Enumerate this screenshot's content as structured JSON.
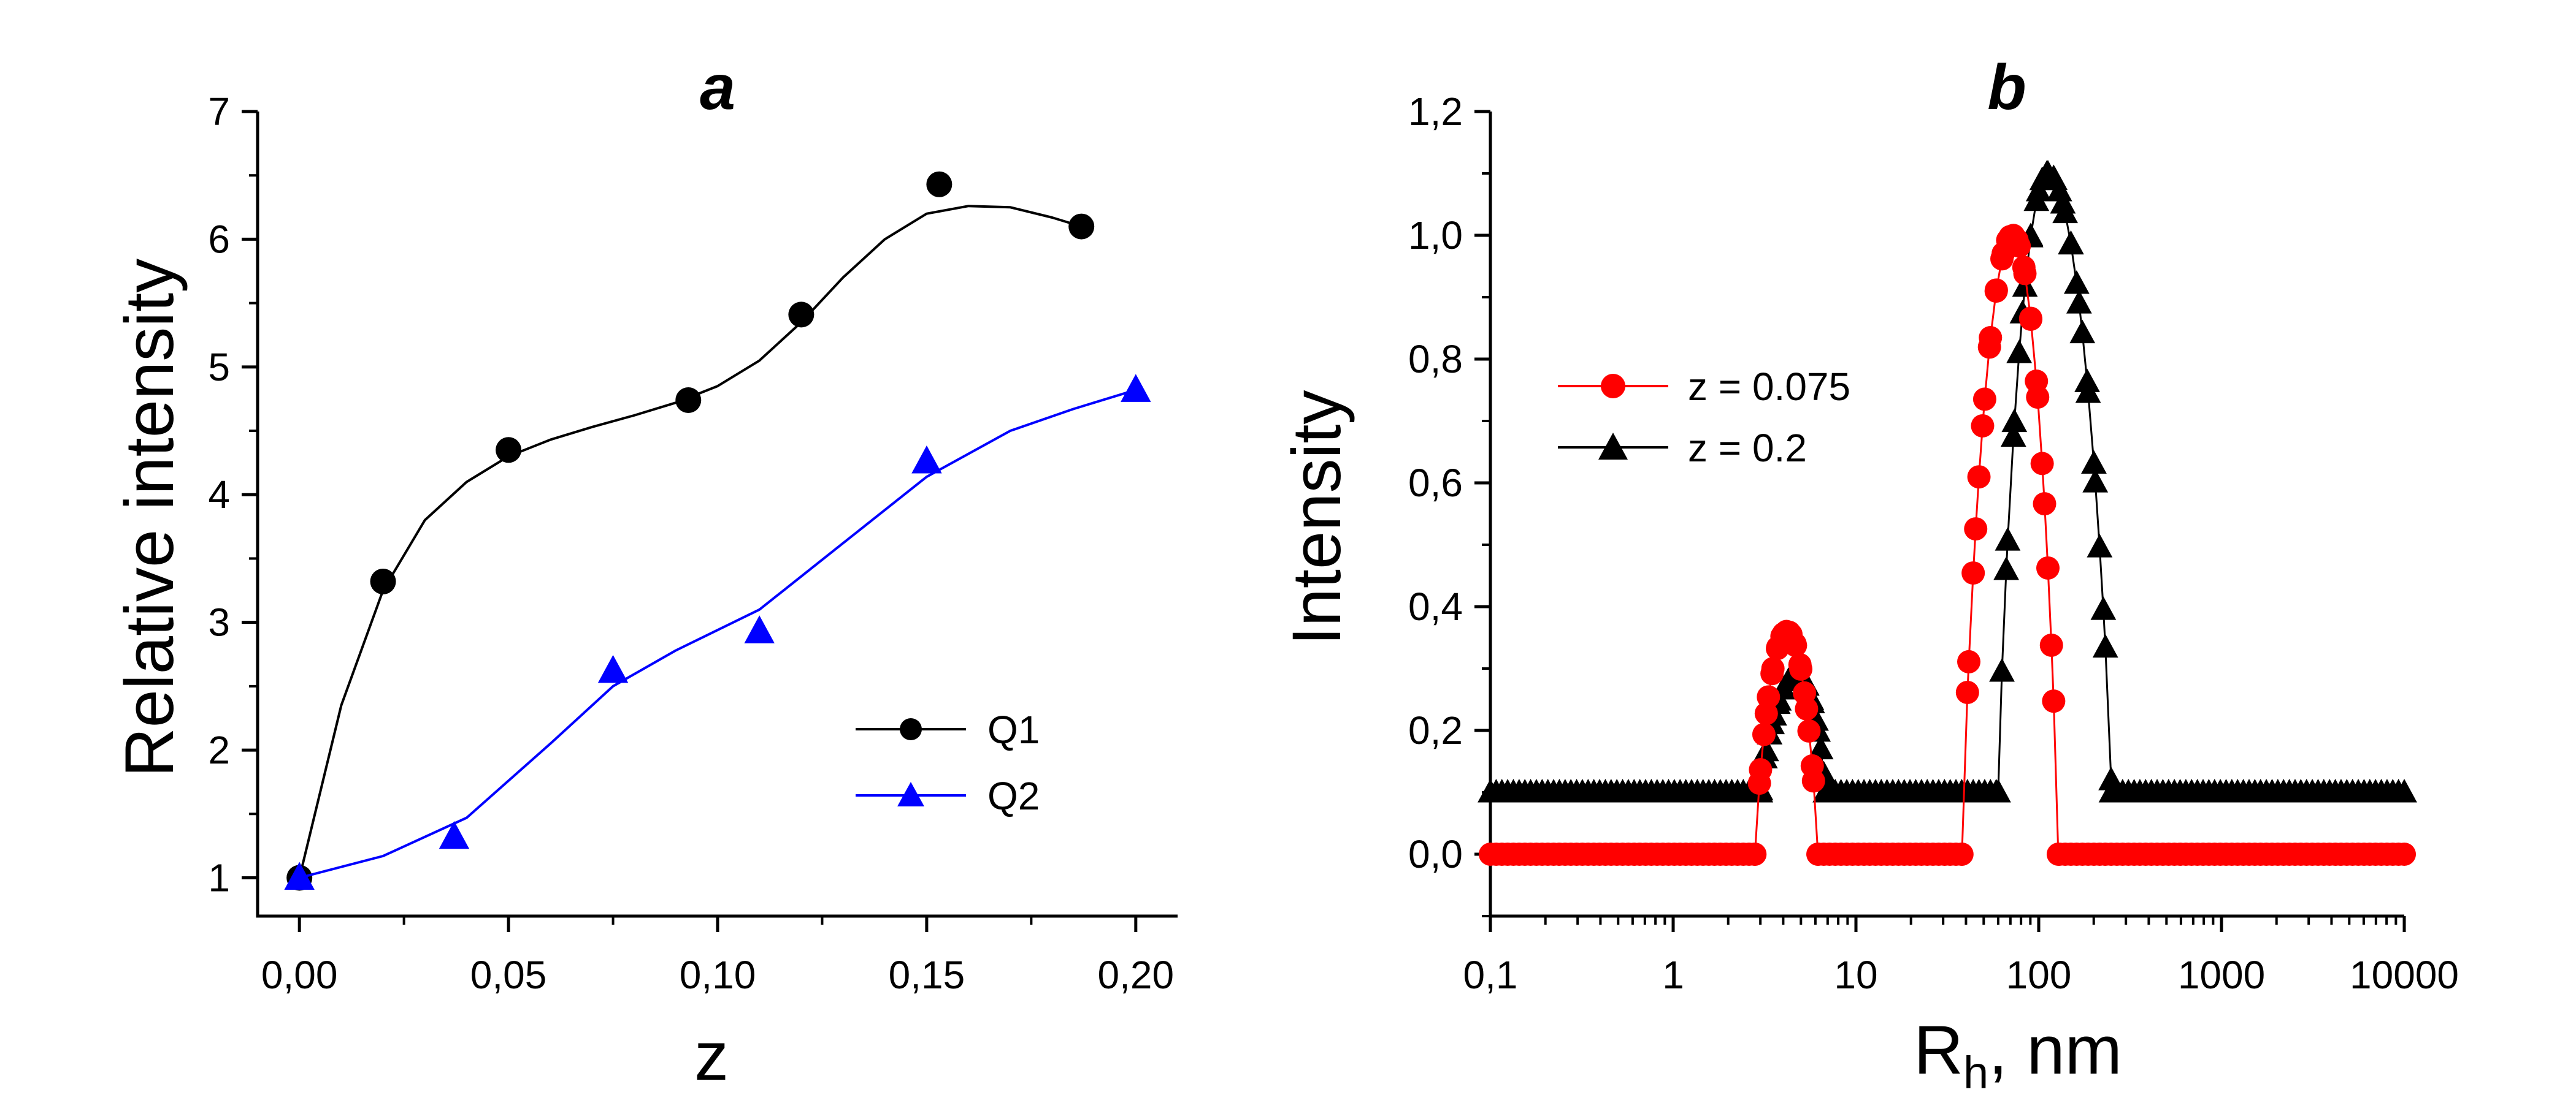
{
  "colors": {
    "black": "#000000",
    "blue": "#0000ff",
    "red": "#ff0000"
  },
  "chart_data": [
    {
      "type": "scatter",
      "panel": "a",
      "title": "a",
      "xlabel": "z",
      "ylabel": "Relative intensity",
      "xlim": [
        -0.01,
        0.21
      ],
      "ylim": [
        0.7,
        7.0
      ],
      "xticks": [
        0.0,
        0.05,
        0.1,
        0.15,
        0.2
      ],
      "xtick_labels": [
        "0,00",
        "0,05",
        "0,10",
        "0,15",
        "0,20"
      ],
      "yticks": [
        1,
        2,
        3,
        4,
        5,
        6,
        7
      ],
      "ytick_labels": [
        "1",
        "2",
        "3",
        "4",
        "5",
        "6",
        "7"
      ],
      "legend_position": "center-right",
      "series": [
        {
          "name": "Q1",
          "marker": "circle",
          "color": "#000000",
          "x": [
            0.0,
            0.02,
            0.05,
            0.093,
            0.12,
            0.153,
            0.187
          ],
          "y": [
            1.0,
            3.32,
            4.35,
            4.74,
            5.41,
            6.43,
            6.1
          ],
          "fit_x": [
            0.0,
            0.01,
            0.02,
            0.03,
            0.04,
            0.05,
            0.06,
            0.07,
            0.08,
            0.09,
            0.1,
            0.11,
            0.12,
            0.13,
            0.14,
            0.15,
            0.16,
            0.17,
            0.18,
            0.187
          ],
          "fit_y": [
            1.0,
            2.35,
            3.25,
            3.8,
            4.1,
            4.3,
            4.43,
            4.53,
            4.62,
            4.72,
            4.85,
            5.05,
            5.35,
            5.7,
            6.0,
            6.2,
            6.26,
            6.25,
            6.17,
            6.1
          ]
        },
        {
          "name": "Q2",
          "marker": "triangle",
          "color": "#0000ff",
          "x": [
            0.0,
            0.037,
            0.075,
            0.11,
            0.15,
            0.2
          ],
          "y": [
            1.0,
            1.32,
            2.62,
            2.93,
            4.26,
            4.82
          ],
          "fit_x": [
            0.0,
            0.02,
            0.04,
            0.06,
            0.075,
            0.09,
            0.11,
            0.13,
            0.15,
            0.17,
            0.185,
            0.2
          ],
          "fit_y": [
            1.0,
            1.17,
            1.47,
            2.05,
            2.5,
            2.78,
            3.1,
            3.62,
            4.14,
            4.5,
            4.67,
            4.82
          ]
        }
      ]
    },
    {
      "type": "scatter",
      "panel": "b",
      "title": "b",
      "xlabel": "R",
      "xlabel_sub": "h",
      "xlabel_suffix": ", nm",
      "ylabel": "Intensity",
      "xscale": "log",
      "xlim": [
        0.1,
        10000
      ],
      "ylim": [
        -0.1,
        1.2
      ],
      "xticks": [
        0.1,
        1,
        10,
        100,
        1000,
        10000
      ],
      "xtick_labels": [
        "0,1",
        "1",
        "10",
        "100",
        "1000",
        "10000"
      ],
      "yticks": [
        0.0,
        0.2,
        0.4,
        0.6,
        0.8,
        1.0,
        1.2
      ],
      "ytick_labels": [
        "0,0",
        "0,2",
        "0,4",
        "0,6",
        "0,8",
        "1,0",
        "1,2"
      ],
      "legend_position": "center-left",
      "series": [
        {
          "name": "z = 0.075",
          "marker": "circle",
          "color": "#ff0000",
          "baseline": 0.0,
          "peaks": [
            {
              "center": 4.2,
              "height": 0.36,
              "lo": 2.8,
              "hi": 6.2
            },
            {
              "center": 72,
              "height": 1.0,
              "lo": 38,
              "hi": 128
            }
          ]
        },
        {
          "name": "z = 0.2",
          "marker": "triangle",
          "color": "#000000",
          "baseline": 0.1,
          "peaks": [
            {
              "center": 4.8,
              "height": 0.29,
              "lo": 3.0,
              "hi": 6.8
            },
            {
              "center": 112,
              "height": 1.1,
              "lo": 60,
              "hi": 250
            }
          ]
        }
      ]
    }
  ]
}
